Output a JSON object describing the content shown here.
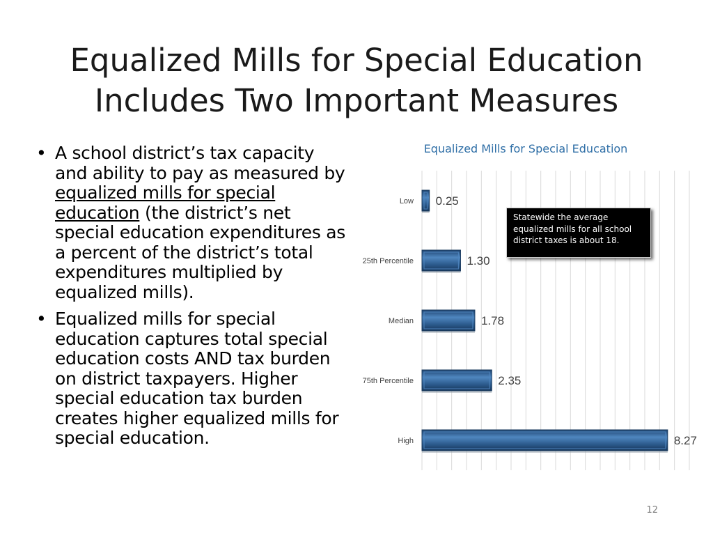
{
  "slide": {
    "title_line1": "Equalized Mills for Special Education",
    "title_line2": "Includes Two Important Measures",
    "bullet_char": "•",
    "bullet1": {
      "before": "A school district’s tax capacity and ability to pay as measured by ",
      "underlined": "equalized mills for special education",
      "after": " (the district’s net special education expenditures as a percent of the district’s total expenditures multiplied by equalized mills)."
    },
    "bullet2": "Equalized mills for special education captures total special education costs AND tax burden on district taxpayers. Higher special education tax burden creates higher equalized mills for special education.",
    "callout": "Statewide the average equalized mills for all school district taxes is about 18.",
    "slide_number": "12"
  },
  "chart_data": {
    "type": "bar",
    "orientation": "horizontal",
    "title": "Equalized Mills for Special Education",
    "categories": [
      "Low",
      "25th Percentile",
      "Median",
      "75th Percentile",
      "High"
    ],
    "values": [
      0.25,
      1.3,
      1.78,
      2.35,
      8.27
    ],
    "value_labels": [
      "0.25",
      "1.30",
      "1.78",
      "2.35",
      "8.27"
    ],
    "xlim": [
      0,
      9
    ],
    "grid": true,
    "legend": "none",
    "colors": {
      "bar": "#2b5a8c",
      "bar_light": "#4f86bf",
      "bar_dark": "#1a3a5e",
      "title": "#2e6ea6",
      "grid": "#d9d9d9"
    }
  }
}
